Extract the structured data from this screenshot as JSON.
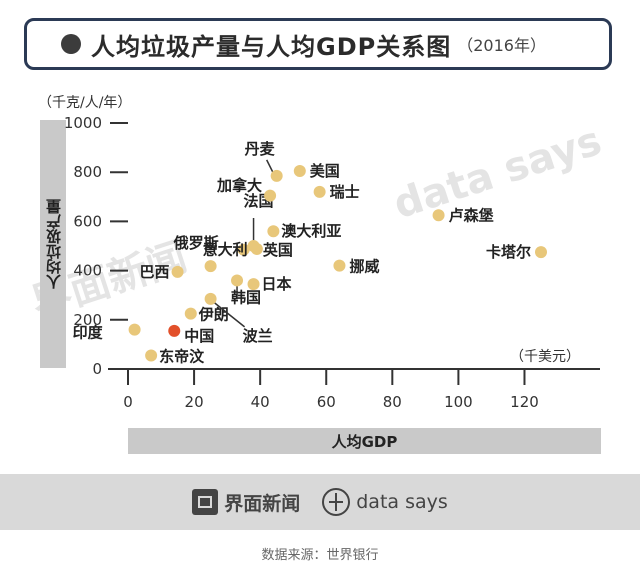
{
  "title": "人均垃圾产量与人均GDP关系图",
  "title_year": "（2016年）",
  "y_unit": "（千克/人/年）",
  "x_unit": "（千美元）",
  "ylabel": "人均垃圾产量",
  "xlabel": "人均GDP",
  "footer": {
    "brand": "界面新闻",
    "ds": "data says"
  },
  "watermarks": {
    "brand": "界面新闻",
    "ds": "data says"
  },
  "source": "数据来源：世界银行",
  "colors": {
    "point": "#e8c77a",
    "highlight": "#e2502a",
    "axis": "#333333",
    "leader": "#333333"
  },
  "chart_data": {
    "type": "scatter",
    "xlim": [
      0,
      125
    ],
    "ylim": [
      0,
      1000
    ],
    "xticks": [
      "0",
      "20",
      "40",
      "60",
      "80",
      "100",
      "120"
    ],
    "yticks": [
      "0",
      "200",
      "400",
      "600",
      "800",
      "1000"
    ],
    "grid": false,
    "points": [
      {
        "label": "印度",
        "x": 2,
        "y": 160
      },
      {
        "label": "东帝汶",
        "x": 7,
        "y": 55
      },
      {
        "label": "中国",
        "x": 14,
        "y": 155,
        "highlight": true
      },
      {
        "label": "巴西",
        "x": 15,
        "y": 395
      },
      {
        "label": "伊朗",
        "x": 19,
        "y": 225
      },
      {
        "label": "俄罗斯",
        "x": 25,
        "y": 418
      },
      {
        "label": "波兰",
        "x": 25,
        "y": 285
      },
      {
        "label": "韩国",
        "x": 33,
        "y": 360
      },
      {
        "label": "日本",
        "x": 38,
        "y": 345
      },
      {
        "label": "意大利",
        "x": 35,
        "y": 485
      },
      {
        "label": "法国",
        "x": 38,
        "y": 500
      },
      {
        "label": "英国",
        "x": 39,
        "y": 488
      },
      {
        "label": "澳大利亚",
        "x": 44,
        "y": 560
      },
      {
        "label": "加拿大",
        "x": 43,
        "y": 705
      },
      {
        "label": "丹麦",
        "x": 45,
        "y": 785
      },
      {
        "label": "美国",
        "x": 52,
        "y": 805
      },
      {
        "label": "瑞士",
        "x": 58,
        "y": 720
      },
      {
        "label": "挪威",
        "x": 64,
        "y": 420
      },
      {
        "label": "卢森堡",
        "x": 94,
        "y": 625
      },
      {
        "label": "卡塔尔",
        "x": 125,
        "y": 475
      }
    ]
  }
}
